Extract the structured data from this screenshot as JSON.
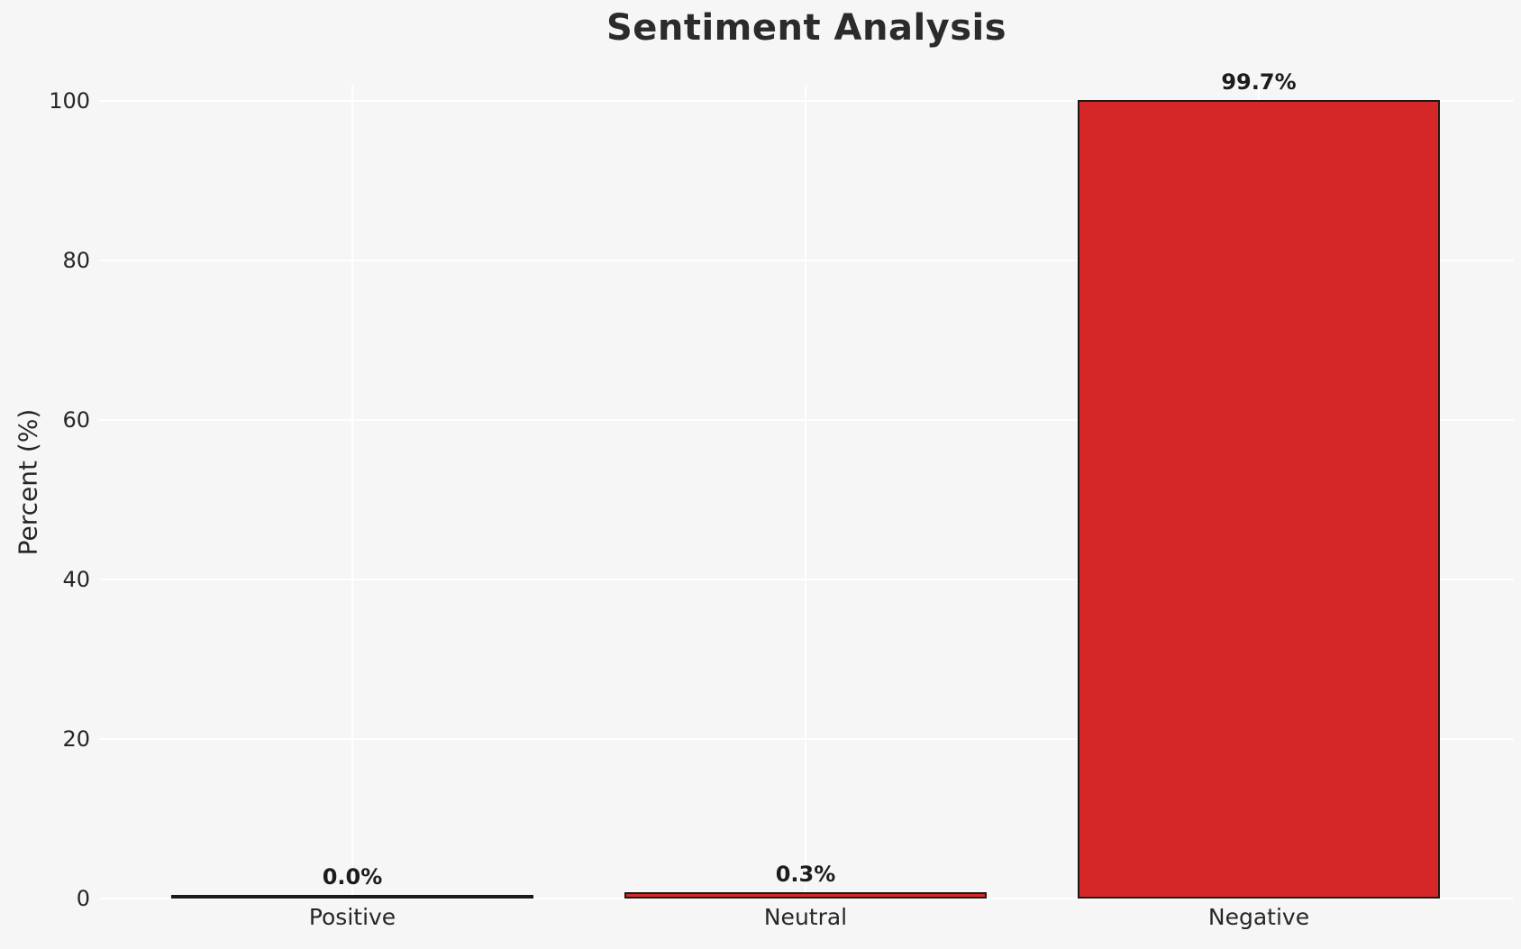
{
  "chart_data": {
    "type": "bar",
    "title": "Sentiment Analysis",
    "xlabel": "",
    "ylabel": "Percent (%)",
    "categories": [
      "Positive",
      "Neutral",
      "Negative"
    ],
    "values": [
      0.0,
      0.3,
      99.7
    ],
    "value_labels": [
      "0.0%",
      "0.3%",
      "99.7%"
    ],
    "yticks": [
      0,
      20,
      40,
      60,
      80,
      100
    ],
    "ylim": [
      0,
      105
    ],
    "grid": "on",
    "legend": "none",
    "colors": {
      "bar_fill": "#d62728",
      "bar_edge": "#1a1a1a",
      "background": "#f6f6f6",
      "gridline": "#ffffff",
      "title_text": "#2b2b2b",
      "tick_text": "#262626"
    }
  }
}
